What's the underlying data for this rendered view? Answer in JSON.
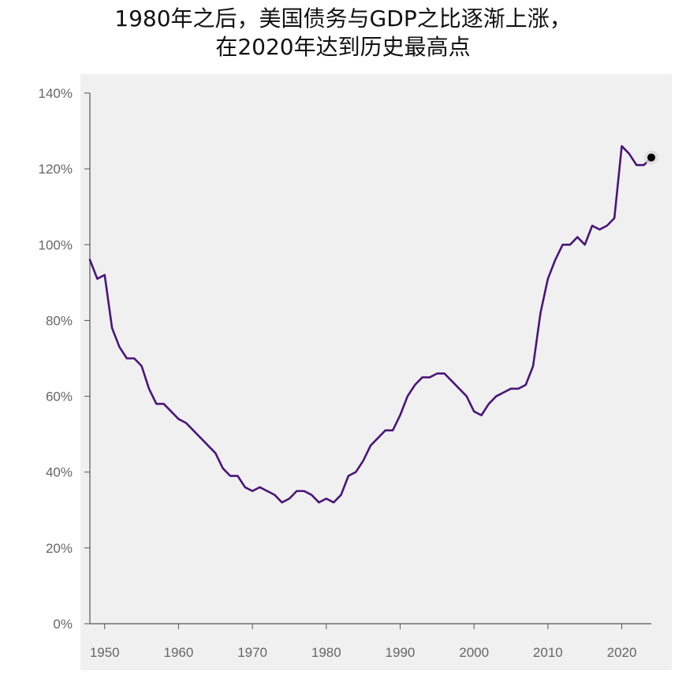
{
  "title": {
    "line1": "1980年之后，美国债务与GDP之比逐渐上涨，",
    "line2": "在2020年达到历史最高点"
  },
  "colors": {
    "line": "#4a1578",
    "plot_background": "#f0f0f0",
    "axis": "#555555",
    "tick_text": "#666666",
    "end_marker": "#000000"
  },
  "chart_data": {
    "type": "line",
    "title": "1980年之后，美国债务与GDP之比逐渐上涨，在2020年达到历史最高点",
    "xlabel": "",
    "ylabel": "",
    "xlim": [
      1948,
      2024
    ],
    "ylim": [
      0,
      140
    ],
    "grid": false,
    "x_ticks": [
      1950,
      1960,
      1970,
      1980,
      1990,
      2000,
      2010,
      2020
    ],
    "x_tick_labels": [
      "1950",
      "1960",
      "1970",
      "1980",
      "1990",
      "2000",
      "2010",
      "2020"
    ],
    "y_ticks": [
      0,
      20,
      40,
      60,
      80,
      100,
      120,
      140
    ],
    "y_tick_labels": [
      "0%",
      "20%",
      "40%",
      "60%",
      "80%",
      "100%",
      "120%",
      "140%"
    ],
    "series": [
      {
        "name": "美国债务与GDP之比",
        "x": [
          1948,
          1949,
          1950,
          1951,
          1952,
          1953,
          1954,
          1955,
          1956,
          1957,
          1958,
          1959,
          1960,
          1961,
          1962,
          1963,
          1964,
          1965,
          1966,
          1967,
          1968,
          1969,
          1970,
          1971,
          1972,
          1973,
          1974,
          1975,
          1976,
          1977,
          1978,
          1979,
          1980,
          1981,
          1982,
          1983,
          1984,
          1985,
          1986,
          1987,
          1988,
          1989,
          1990,
          1991,
          1992,
          1993,
          1994,
          1995,
          1996,
          1997,
          1998,
          1999,
          2000,
          2001,
          2002,
          2003,
          2004,
          2005,
          2006,
          2007,
          2008,
          2009,
          2010,
          2011,
          2012,
          2013,
          2014,
          2015,
          2016,
          2017,
          2018,
          2019,
          2020,
          2021,
          2022,
          2023,
          2024
        ],
        "values": [
          96,
          91,
          92,
          78,
          73,
          70,
          70,
          68,
          62,
          58,
          58,
          56,
          54,
          53,
          51,
          49,
          47,
          45,
          41,
          39,
          39,
          36,
          35,
          36,
          35,
          34,
          32,
          33,
          35,
          35,
          34,
          32,
          33,
          32,
          34,
          39,
          40,
          43,
          47,
          49,
          51,
          51,
          55,
          60,
          63,
          65,
          65,
          66,
          66,
          64,
          62,
          60,
          56,
          55,
          58,
          60,
          61,
          62,
          62,
          63,
          68,
          82,
          91,
          96,
          100,
          100,
          102,
          100,
          105,
          104,
          105,
          107,
          126,
          124,
          121,
          121,
          123
        ]
      }
    ],
    "highlight_point": {
      "x": 2024,
      "y": 123
    }
  }
}
